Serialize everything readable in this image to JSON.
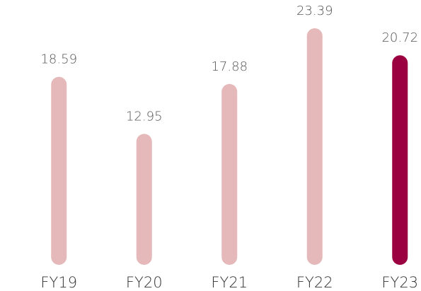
{
  "chart_data": {
    "type": "bar",
    "categories": [
      "FY19",
      "FY20",
      "FY21",
      "FY22",
      "FY23"
    ],
    "values": [
      18.59,
      12.95,
      17.88,
      23.39,
      20.72
    ],
    "colors": [
      "#e5b8b9",
      "#e5b8b9",
      "#e5b8b9",
      "#e5b8b9",
      "#9b0040"
    ]
  }
}
